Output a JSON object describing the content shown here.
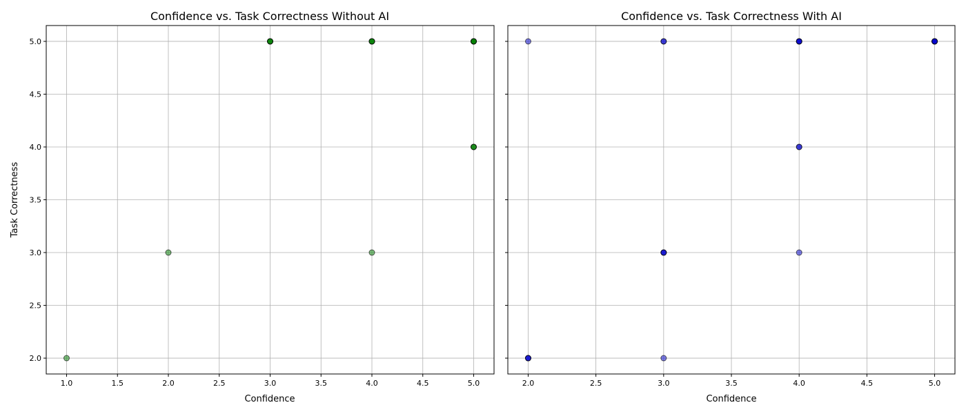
{
  "chart_data": [
    {
      "type": "scatter",
      "title": "Confidence vs. Task Correctness Without AI",
      "xlabel": "Confidence",
      "ylabel": "Task Correctness",
      "xlim": [
        0.8,
        5.2
      ],
      "ylim": [
        1.85,
        5.15
      ],
      "xticks": [
        "1.0",
        "1.5",
        "2.0",
        "2.5",
        "3.0",
        "3.5",
        "4.0",
        "4.5",
        "5.0"
      ],
      "yticks": [
        "2.0",
        "2.5",
        "3.0",
        "3.5",
        "4.0",
        "4.5",
        "5.0"
      ],
      "grid": true,
      "marker_color": "#008000",
      "marker_edge_color": "#000000",
      "marker_alpha": 0.5,
      "points": [
        {
          "x": 1,
          "y": 2
        },
        {
          "x": 2,
          "y": 3
        },
        {
          "x": 3,
          "y": 5
        },
        {
          "x": 3,
          "y": 5
        },
        {
          "x": 3,
          "y": 5
        },
        {
          "x": 3,
          "y": 5
        },
        {
          "x": 4,
          "y": 5
        },
        {
          "x": 4,
          "y": 5
        },
        {
          "x": 4,
          "y": 5
        },
        {
          "x": 4,
          "y": 5
        },
        {
          "x": 4,
          "y": 3
        },
        {
          "x": 5,
          "y": 5
        },
        {
          "x": 5,
          "y": 5
        },
        {
          "x": 5,
          "y": 5
        },
        {
          "x": 5,
          "y": 5
        },
        {
          "x": 5,
          "y": 5
        },
        {
          "x": 5,
          "y": 4
        },
        {
          "x": 5,
          "y": 4
        },
        {
          "x": 5,
          "y": 4
        }
      ]
    },
    {
      "type": "scatter",
      "title": "Confidence vs. Task Correctness With AI",
      "xlabel": "Confidence",
      "ylabel": "",
      "xlim": [
        1.85,
        5.15
      ],
      "ylim": [
        1.85,
        5.15
      ],
      "xticks": [
        "2.0",
        "2.5",
        "3.0",
        "3.5",
        "4.0",
        "4.5",
        "5.0"
      ],
      "yticks": [
        "2.0",
        "2.5",
        "3.0",
        "3.5",
        "4.0",
        "4.5",
        "5.0"
      ],
      "grid": true,
      "shared_y": true,
      "marker_color": "#0000cd",
      "marker_edge_color": "#000000",
      "marker_alpha": 0.5,
      "points": [
        {
          "x": 2,
          "y": 5
        },
        {
          "x": 2,
          "y": 2
        },
        {
          "x": 2,
          "y": 2
        },
        {
          "x": 2,
          "y": 2
        },
        {
          "x": 3,
          "y": 5
        },
        {
          "x": 3,
          "y": 5
        },
        {
          "x": 3,
          "y": 3
        },
        {
          "x": 3,
          "y": 3
        },
        {
          "x": 3,
          "y": 3
        },
        {
          "x": 3,
          "y": 2
        },
        {
          "x": 4,
          "y": 5
        },
        {
          "x": 4,
          "y": 5
        },
        {
          "x": 4,
          "y": 5
        },
        {
          "x": 4,
          "y": 5
        },
        {
          "x": 4,
          "y": 4
        },
        {
          "x": 4,
          "y": 4
        },
        {
          "x": 4,
          "y": 3
        },
        {
          "x": 5,
          "y": 5
        },
        {
          "x": 5,
          "y": 5
        },
        {
          "x": 5,
          "y": 5
        },
        {
          "x": 5,
          "y": 5
        },
        {
          "x": 5,
          "y": 5
        }
      ]
    }
  ]
}
